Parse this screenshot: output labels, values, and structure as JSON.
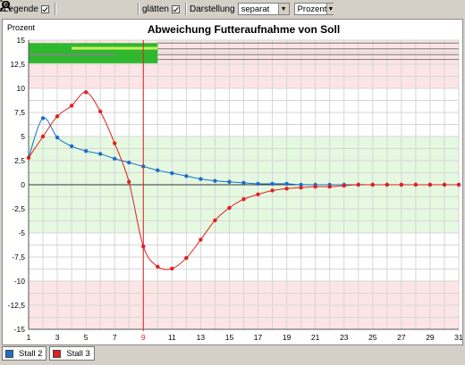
{
  "toolbar": {
    "legend_label": "Legende",
    "smooth_label": "glätten",
    "display_label": "Darstellung",
    "display_value": "separat",
    "unit_value": "Prozent",
    "icons": [
      "zoom-fit-icon",
      "zoom-horizontal-icon",
      "zoom-vertical-icon",
      "zoom-in-icon",
      "zoom-out-icon"
    ]
  },
  "chart_data": {
    "type": "line",
    "title": "Abweichung Futteraufnahme von Soll",
    "ylabel": "Prozent",
    "xlabel": "",
    "xlim": [
      1,
      31
    ],
    "ylim": [
      -15,
      15
    ],
    "x_ticks": [
      "1",
      "3",
      "5",
      "7",
      "9",
      "11",
      "13",
      "15",
      "17",
      "19",
      "21",
      "23",
      "25",
      "27",
      "29",
      "31"
    ],
    "y_ticks": [
      "15",
      "12,5",
      "10",
      "7,5",
      "5",
      "2,5",
      "0",
      "-2,5",
      "-5",
      "-7,5",
      "-10",
      "-12,5",
      "-15"
    ],
    "highlight_x_tick": "9",
    "cursor_x": 9,
    "bands": [
      {
        "from": 10,
        "to": 15,
        "color": "#fde5e5"
      },
      {
        "from": -5,
        "to": 5,
        "color": "#e5f9e1"
      },
      {
        "from": -15,
        "to": -10,
        "color": "#fde5e5"
      }
    ],
    "series": [
      {
        "name": "Stall 2",
        "color": "#1a6fc9",
        "x": [
          1,
          2,
          3,
          4,
          5,
          6,
          7,
          8,
          9,
          10,
          11,
          12,
          13,
          14,
          15,
          16,
          17,
          18,
          19,
          20,
          21,
          22,
          23,
          24,
          25,
          26,
          27,
          28,
          29,
          30,
          31
        ],
        "y": [
          2.8,
          6.9,
          4.9,
          4.0,
          3.5,
          3.2,
          2.7,
          2.3,
          1.9,
          1.5,
          1.2,
          0.9,
          0.6,
          0.4,
          0.3,
          0.2,
          0.1,
          0.1,
          0.1,
          0.0,
          0.0,
          0.0,
          0.0,
          0.0,
          0.0,
          0.0,
          0.0,
          0.0,
          0.0,
          0.0,
          0.0
        ]
      },
      {
        "name": "Stall 3",
        "color": "#e02020",
        "x": [
          1,
          2,
          3,
          4,
          5,
          6,
          7,
          8,
          9,
          10,
          11,
          12,
          13,
          14,
          15,
          16,
          17,
          18,
          19,
          20,
          21,
          22,
          23,
          24,
          25,
          26,
          27,
          28,
          29,
          30,
          31
        ],
        "y": [
          2.8,
          5.0,
          7.1,
          8.2,
          9.6,
          7.6,
          4.3,
          0.3,
          -6.4,
          -8.5,
          -8.7,
          -7.6,
          -5.7,
          -3.7,
          -2.4,
          -1.5,
          -1.0,
          -0.6,
          -0.4,
          -0.3,
          -0.2,
          -0.2,
          -0.1,
          0.0,
          0.0,
          0.0,
          0.0,
          0.0,
          0.0,
          0.0,
          0.0
        ]
      }
    ]
  }
}
